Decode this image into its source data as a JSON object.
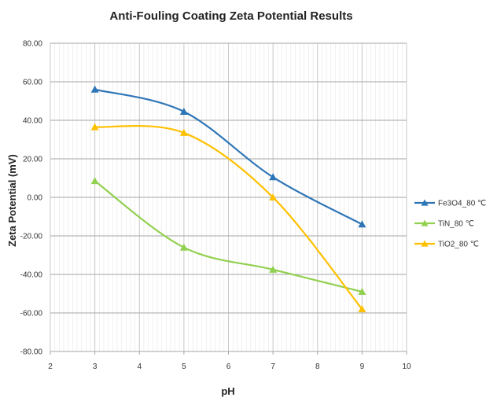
{
  "chart_data": {
    "type": "line",
    "title": "Anti-Fouling Coating Zeta Potential Results",
    "xlabel": "pH",
    "ylabel": "Zeta Potential (mV)",
    "xlim": [
      2,
      10
    ],
    "ylim": [
      -80,
      80
    ],
    "x_ticks": [
      "2",
      "3",
      "4",
      "5",
      "6",
      "7",
      "8",
      "9",
      "10"
    ],
    "y_ticks": [
      "80.00",
      "60.00",
      "40.00",
      "20.00",
      "0.00",
      "-20.00",
      "-40.00",
      "-60.00",
      "-80.00"
    ],
    "x_tick_values": [
      2,
      3,
      4,
      5,
      6,
      7,
      8,
      9,
      10
    ],
    "y_tick_values": [
      80,
      60,
      40,
      20,
      0,
      -20,
      -40,
      -60,
      -80
    ],
    "grid": true,
    "smooth": true,
    "legend_position": "right",
    "x": [
      3,
      5,
      7,
      9
    ],
    "series": [
      {
        "name": "Fe3O4_80 ℃",
        "color": "#2E75B6",
        "values": [
          56,
          44.5,
          10.5,
          -14
        ]
      },
      {
        "name": "TiN_80 ℃",
        "color": "#92D050",
        "values": [
          8.5,
          -26,
          -37.5,
          -49
        ]
      },
      {
        "name": "TiO2_80 ℃",
        "color": "#FFC000",
        "values": [
          36.5,
          33.5,
          0,
          -58
        ]
      }
    ]
  }
}
